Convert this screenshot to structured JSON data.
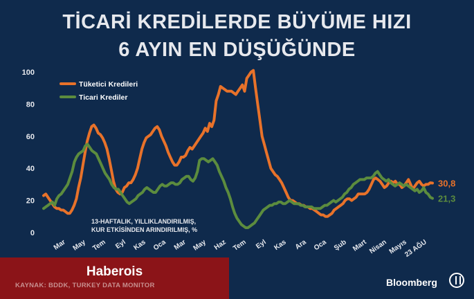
{
  "title_line1": "TİCARİ KREDİLERDE BÜYÜME HIZI",
  "title_line2": "6 AYIN EN DÜŞÜĞÜNDE",
  "note_line1": "13-HAFTALIK, YILLIKLANDIRILMIŞ,",
  "note_line2": "KUR ETKİSİNDEN ARINDIRILMIŞ, %",
  "brand": "Haberois",
  "source": "KAYNAK: BDDK, TURKEY DATA MONITOR",
  "logo_text": "Bloomberg",
  "colors": {
    "background": "#0f2a4c",
    "tuketici": "#e8722a",
    "ticari": "#5c8c3e",
    "source_box": "#8b1418"
  },
  "chart_data": {
    "type": "line",
    "title": "TİCARİ KREDİLERDE BÜYÜME HIZI 6 AYIN EN DÜŞÜĞÜNDE",
    "xlabel": "",
    "ylabel": "",
    "ylim": [
      0,
      100
    ],
    "yticks": [
      0,
      20,
      40,
      60,
      80,
      100
    ],
    "grid": false,
    "legend_position": "top-left",
    "x_ticks": [
      "Mar",
      "May",
      "Tem",
      "Eyl",
      "Kas",
      "Oca",
      "Mar",
      "May",
      "Haz",
      "Tem",
      "Eyl",
      "Kas",
      "Ara",
      "Oca",
      "Şub",
      "Mart",
      "Nisan",
      "Mayıs",
      "23 AĞU"
    ],
    "series": [
      {
        "name": "Tüketici Kredileri",
        "color": "#e8722a",
        "last_label": "30,8",
        "values": [
          23,
          24,
          22,
          20,
          18,
          16,
          15,
          15,
          14,
          14,
          13,
          12,
          12,
          14,
          17,
          21,
          28,
          34,
          42,
          50,
          57,
          62,
          66,
          67,
          65,
          62,
          61,
          59,
          56,
          52,
          46,
          39,
          32,
          27,
          25,
          24,
          25,
          28,
          29,
          31,
          31,
          33,
          36,
          40,
          46,
          52,
          56,
          59,
          60,
          61,
          63,
          65,
          66,
          64,
          60,
          57,
          54,
          50,
          47,
          44,
          42,
          42,
          44,
          47,
          47,
          48,
          51,
          53,
          52,
          54,
          56,
          58,
          60,
          62,
          65,
          63,
          68,
          66,
          70,
          82,
          86,
          91,
          90,
          89,
          88,
          88,
          88,
          87,
          86,
          88,
          90,
          92,
          88,
          96,
          98,
          100,
          101,
          90,
          80,
          70,
          60,
          55,
          50,
          45,
          40,
          38,
          36,
          35,
          33,
          31,
          28,
          25,
          22,
          20,
          20,
          19,
          18,
          18,
          17,
          17,
          16,
          16,
          15,
          15,
          14,
          13,
          12,
          11,
          11,
          10,
          10,
          11,
          12,
          14,
          15,
          16,
          17,
          18,
          20,
          21,
          21,
          20,
          21,
          22,
          24,
          24,
          24,
          24,
          25,
          27,
          30,
          33,
          34,
          33,
          32,
          30,
          28,
          29,
          31,
          32,
          31,
          32,
          30,
          30,
          28,
          29,
          31,
          33,
          30,
          27,
          29,
          31,
          32,
          30,
          29,
          30,
          30,
          31,
          30.8
        ]
      },
      {
        "name": "Ticari Krediler",
        "color": "#5c8c3e",
        "last_label": "21,3",
        "values": [
          15,
          16,
          17,
          18,
          19,
          17,
          21,
          23,
          24,
          26,
          28,
          30,
          34,
          38,
          44,
          47,
          49,
          50,
          51,
          54,
          55,
          53,
          51,
          50,
          49,
          46,
          43,
          40,
          37,
          35,
          33,
          30,
          28,
          27,
          27,
          25,
          23,
          21,
          19,
          18,
          19,
          20,
          21,
          23,
          24,
          25,
          27,
          28,
          27,
          26,
          25,
          25,
          27,
          29,
          30,
          29,
          29,
          30,
          31,
          31,
          30,
          30,
          31,
          33,
          34,
          35,
          35,
          33,
          32,
          34,
          38,
          45,
          46,
          46,
          45,
          44,
          45,
          46,
          44,
          42,
          38,
          35,
          32,
          28,
          25,
          21,
          16,
          12,
          9,
          7,
          5,
          4,
          3,
          3,
          4,
          5,
          6,
          8,
          10,
          12,
          14,
          15,
          16,
          17,
          17,
          18,
          18,
          19,
          19,
          18,
          18,
          19,
          20,
          19,
          18,
          18,
          18,
          17,
          17,
          16,
          16,
          16,
          16,
          15,
          15,
          15,
          15,
          16,
          17,
          17,
          18,
          19,
          20,
          19,
          20,
          21,
          22,
          24,
          25,
          27,
          28,
          30,
          31,
          32,
          33,
          33,
          33,
          34,
          34,
          34,
          35,
          37,
          38,
          36,
          34,
          33,
          32,
          33,
          31,
          30,
          29,
          30,
          31,
          30,
          29,
          30,
          29,
          28,
          27,
          26,
          27,
          25,
          26,
          28,
          25,
          24,
          22,
          21.3
        ]
      }
    ]
  }
}
